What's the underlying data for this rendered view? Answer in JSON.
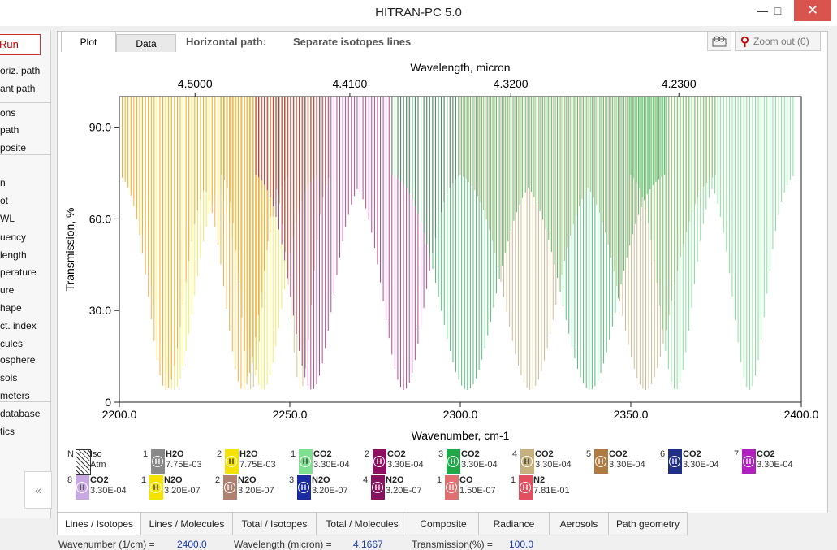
{
  "window": {
    "title": "HITRAN-PC 5.0",
    "minimize_icon": "minimize-icon",
    "maximize_icon": "maximize-icon",
    "close_icon": "close-icon"
  },
  "sidebar": {
    "run_label": "Run",
    "items": [
      "oriz. path",
      "ant path",
      "ons",
      "path",
      "posite",
      "n",
      "ot",
      "WL",
      "uency",
      "length",
      "perature",
      "ure",
      "hape",
      "ct. index",
      "cules",
      "osphere",
      "sols",
      "meters",
      "database",
      "tics"
    ],
    "collapse_label": "«"
  },
  "tabs": {
    "plot": "Plot",
    "data": "Data"
  },
  "subtitle": {
    "label": "Horizontal path:",
    "value": "Separate isotopes lines"
  },
  "toolbar": {
    "camera_icon": "camera-icon",
    "zoom_label": "Zoom out (0)",
    "zoom_icon": "zoom-out-icon"
  },
  "chart_data": {
    "type": "line",
    "title": "",
    "xlabel": "Wavenumber, cm-1",
    "ylabel": "Transmission, %",
    "top_xlabel": "Wavelength, micron",
    "xlim": [
      2200,
      2400
    ],
    "ylim": [
      0,
      100
    ],
    "x_ticks": [
      "2200.0",
      "2250.0",
      "2300.0",
      "2350.0",
      "2400.0"
    ],
    "y_ticks": [
      "0",
      "30.0",
      "60.0",
      "90.0"
    ],
    "top_ticks": [
      {
        "label": "4.5000",
        "wn": 2222.2
      },
      {
        "label": "4.4100",
        "wn": 2267.6
      },
      {
        "label": "4.3200",
        "wn": 2314.8
      },
      {
        "label": "4.2300",
        "wn": 2364.1
      }
    ],
    "series": [
      {
        "name": "N2O",
        "color": "#f2e830",
        "band": [
          2200,
          2258
        ]
      },
      {
        "name": "N2O",
        "color": "#c9b878",
        "band": [
          2230,
          2262
        ]
      },
      {
        "name": "CO2",
        "color": "#ff9a00",
        "band": [
          2200,
          2250
        ]
      },
      {
        "name": "CO2",
        "color": "#a21572",
        "band": [
          2240,
          2300
        ]
      },
      {
        "name": "CO2",
        "color": "#20b050",
        "band": [
          2280,
          2360
        ]
      },
      {
        "name": "CO2",
        "color": "#c3a670",
        "band": [
          2300,
          2375
        ]
      },
      {
        "name": "CO2",
        "color": "#5fdc7a",
        "band": [
          2350,
          2398
        ]
      }
    ]
  },
  "legend_header": {
    "n": "N",
    "iso": "Iso",
    "atm": "Atm"
  },
  "legend": [
    {
      "n": "1",
      "mol": "H2O",
      "abund": "7.75E-03",
      "color": "#888888"
    },
    {
      "n": "2",
      "mol": "H2O",
      "abund": "7.75E-03",
      "color": "#f6e200"
    },
    {
      "n": "1",
      "mol": "CO2",
      "abund": "3.30E-04",
      "color": "#7ee08e"
    },
    {
      "n": "2",
      "mol": "CO2",
      "abund": "3.30E-04",
      "color": "#8a1060"
    },
    {
      "n": "3",
      "mol": "CO2",
      "abund": "3.30E-04",
      "color": "#20a848"
    },
    {
      "n": "4",
      "mol": "CO2",
      "abund": "3.30E-04",
      "color": "#c6b07c"
    },
    {
      "n": "5",
      "mol": "CO2",
      "abund": "3.30E-04",
      "color": "#b07a40"
    },
    {
      "n": "6",
      "mol": "CO2",
      "abund": "3.30E-04",
      "color": "#20308a"
    },
    {
      "n": "7",
      "mol": "CO2",
      "abund": "3.30E-04",
      "color": "#b020c0"
    },
    {
      "n": "8",
      "mol": "CO2",
      "abund": "3.30E-04",
      "color": "#c8a8e0"
    },
    {
      "n": "1",
      "mol": "N2O",
      "abund": "3.20E-07",
      "color": "#f6e200"
    },
    {
      "n": "2",
      "mol": "N2O",
      "abund": "3.20E-07",
      "color": "#b08070"
    },
    {
      "n": "3",
      "mol": "N2O",
      "abund": "3.20E-07",
      "color": "#1a2aa0"
    },
    {
      "n": "4",
      "mol": "N2O",
      "abund": "3.20E-07",
      "color": "#8a1060"
    },
    {
      "n": "1",
      "mol": "CO",
      "abund": "1.50E-07",
      "color": "#e07070"
    },
    {
      "n": "1",
      "mol": "N2",
      "abund": "7.81E-01",
      "color": "#e05060"
    }
  ],
  "bottom_tabs": [
    "Lines / Isotopes",
    "Lines / Molecules",
    "Total / Isotopes",
    "Total / Molecules",
    "Composite",
    "Radiance",
    "Aerosols",
    "Path geometry"
  ],
  "status": {
    "wavenumber_label": "Wavenumber (1/cm) =",
    "wavenumber_value": "2400.0",
    "wavelength_label": "Wavelength (micron) =",
    "wavelength_value": "4.1667",
    "transmission_label": "Transmission(%) =",
    "transmission_value": "100.0"
  }
}
